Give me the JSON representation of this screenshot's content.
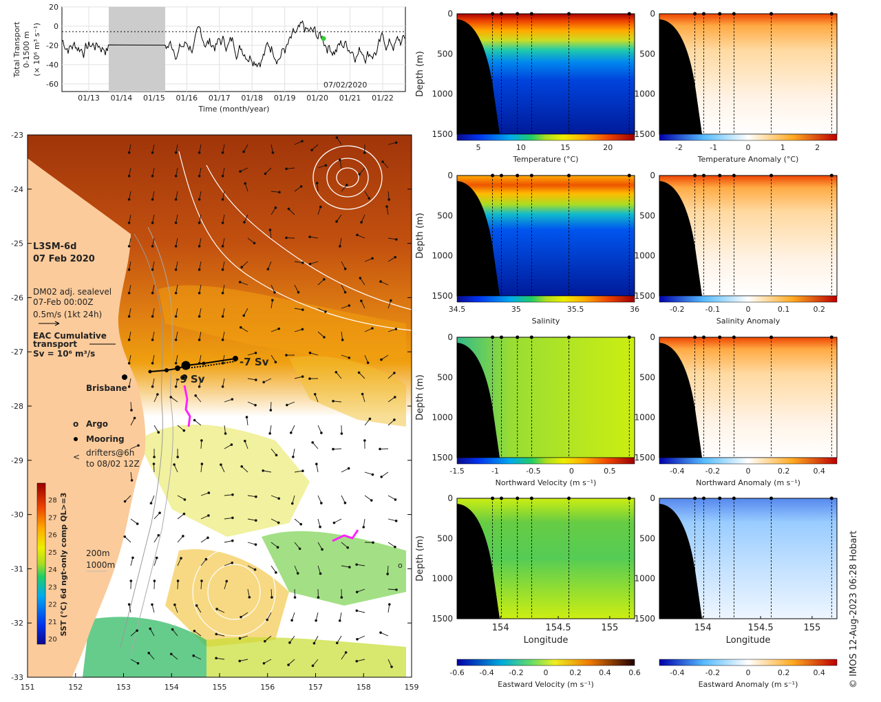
{
  "transport": {
    "ylabel_1": "Total Transport",
    "ylabel_2": "0-1500 m",
    "ylabel_3": "(× 10⁶ m³ s⁻¹)",
    "xlabel": "Time (month/year)",
    "date_label": "07/02/2020",
    "yticks": [
      "20",
      "0",
      "-20",
      "-40",
      "-60"
    ],
    "xticks": [
      "01/13",
      "01/14",
      "01/15",
      "01/16",
      "01/17",
      "01/18",
      "01/19",
      "01/20",
      "01/21",
      "01/22"
    ],
    "marker_color": "#33cc33"
  },
  "map": {
    "title_1": "L3SM-6d",
    "title_2": "07 Feb 2020",
    "sealevel_1": "DM02 adj. sealevel",
    "sealevel_2": "07-Feb 00:00Z",
    "sealevel_3": "0.5m/s (1kt 24h)",
    "eac_1": "EAC Cumulative",
    "eac_2": "transport",
    "eac_3": "Sv = 10⁶ m³/s",
    "brisbane": "Brisbane",
    "sv_north": "-7 Sv",
    "sv_south": "-9 Sv",
    "legend_argo_mark": "o",
    "legend_argo": "Argo",
    "legend_mooring": "Mooring",
    "legend_drifter_mark": "<",
    "legend_drifters_1": "drifters@6h",
    "legend_drifters_2": "to 08/02 12Z",
    "argo_mark": "o",
    "iso_200": "200m",
    "iso_1000": "1000m",
    "cbar_label": "SST (°C) 6d ngt-only comp QL>=3",
    "cbar_ticks": [
      "28",
      "27",
      "26",
      "25",
      "24",
      "23",
      "22",
      "21",
      "20"
    ],
    "lat_ticks": [
      "-23",
      "-24",
      "-25",
      "-26",
      "-27",
      "-28",
      "-29",
      "-30",
      "-31",
      "-32",
      "-33"
    ],
    "lon_ticks": [
      "151",
      "152",
      "153",
      "154",
      "155",
      "156",
      "157",
      "158",
      "159"
    ],
    "land_color": "#fbcb9b",
    "drifter_color": "#ff22ff"
  },
  "sections": {
    "depth_label": "Depth (m)",
    "depth_ticks": [
      "0",
      "500",
      "1000",
      "1500"
    ],
    "lon_ticks": [
      "154",
      "154.5",
      "155"
    ],
    "xlabel": "Longitude",
    "temp_label": "Temperature (°C)",
    "temp_ticks": [
      "5",
      "10",
      "15",
      "20"
    ],
    "tanom_label": "Temperature Anomaly (°C)",
    "tanom_ticks": [
      "-2",
      "-1",
      "0",
      "1",
      "2"
    ],
    "sal_label": "Salinity",
    "sal_ticks": [
      "34.5",
      "35",
      "35.5",
      "36"
    ],
    "sanom_label": "Salinity Anomaly",
    "sanom_ticks": [
      "-0.2",
      "-0.1",
      "0",
      "0.1",
      "0.2"
    ],
    "nvel_label": "Northward Velocity (m s⁻¹)",
    "nvel_ticks": [
      "-1.5",
      "-1",
      "-0.5",
      "0",
      "0.5"
    ],
    "nanom_label": "Northward Anomaly (m s⁻¹)",
    "nanom_ticks": [
      "-0.4",
      "-0.2",
      "0",
      "0.2",
      "0.4"
    ],
    "evel_label": "Eastward Velocity (m s⁻¹)",
    "evel_ticks": [
      "-0.6",
      "-0.4",
      "-0.2",
      "0",
      "0.2",
      "0.4",
      "0.6"
    ],
    "eanom_label": "Eastward Anomaly (m s⁻¹)",
    "eanom_ticks": [
      "-0.4",
      "-0.2",
      "0",
      "0.2",
      "0.4"
    ]
  },
  "credit": "© IMOS 12-Aug-2023 06:28 Hobart"
}
